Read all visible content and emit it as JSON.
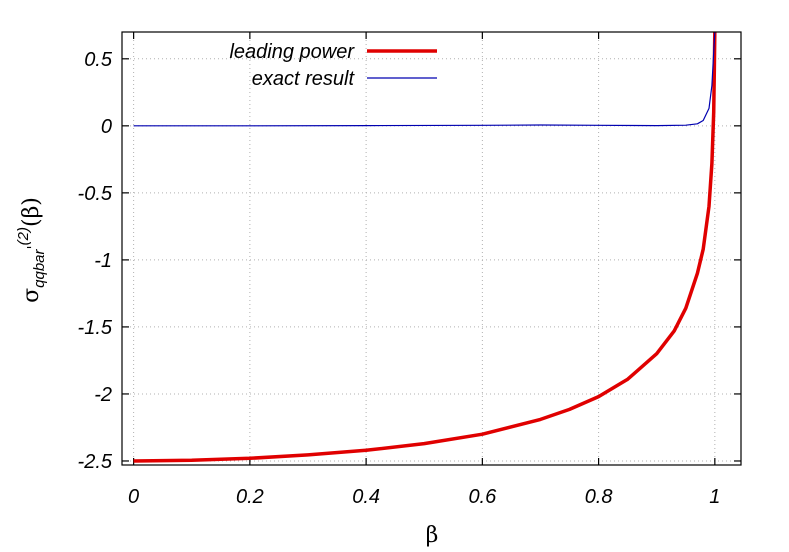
{
  "chart_data": {
    "type": "line",
    "xlabel": "β",
    "ylabel": {
      "base": "σ",
      "sub": "qqbar",
      "prime": "'",
      "sup": "(2)",
      "arg": "(β)"
    },
    "xlim": [
      -0.02,
      1.045
    ],
    "ylim": [
      -2.53,
      0.7
    ],
    "xticks": [
      0,
      0.2,
      0.4,
      0.6,
      0.8,
      1
    ],
    "xtick_labels": [
      "0",
      "0.2",
      "0.4",
      "0.6",
      "0.8",
      "1"
    ],
    "yticks": [
      0.5,
      0,
      -0.5,
      -1,
      -1.5,
      -2,
      -2.5
    ],
    "ytick_labels": [
      "0.5",
      "0",
      "-0.5",
      "-1",
      "-1.5",
      "-2",
      "-2.5"
    ],
    "grid": true,
    "legend_position": "top-left",
    "series": [
      {
        "name": "leading power",
        "color": "#e00000",
        "x": [
          0,
          0.1,
          0.2,
          0.3,
          0.4,
          0.5,
          0.6,
          0.7,
          0.75,
          0.8,
          0.85,
          0.9,
          0.93,
          0.95,
          0.97,
          0.98,
          0.99,
          0.995,
          0.998,
          0.999,
          1.0
        ],
        "y": [
          -2.5,
          -2.495,
          -2.48,
          -2.455,
          -2.42,
          -2.37,
          -2.3,
          -2.19,
          -2.115,
          -2.02,
          -1.89,
          -1.7,
          -1.53,
          -1.36,
          -1.1,
          -0.92,
          -0.6,
          -0.28,
          0.1,
          0.4,
          0.7
        ]
      },
      {
        "name": "exact result",
        "color": "#0000b0",
        "x": [
          0,
          0.2,
          0.4,
          0.6,
          0.7,
          0.8,
          0.9,
          0.95,
          0.97,
          0.98,
          0.99,
          0.995,
          0.998,
          1.0
        ],
        "y": [
          0,
          0,
          0.002,
          0.004,
          0.006,
          0.004,
          0.002,
          0.005,
          0.015,
          0.04,
          0.13,
          0.3,
          0.55,
          0.7
        ]
      }
    ]
  }
}
